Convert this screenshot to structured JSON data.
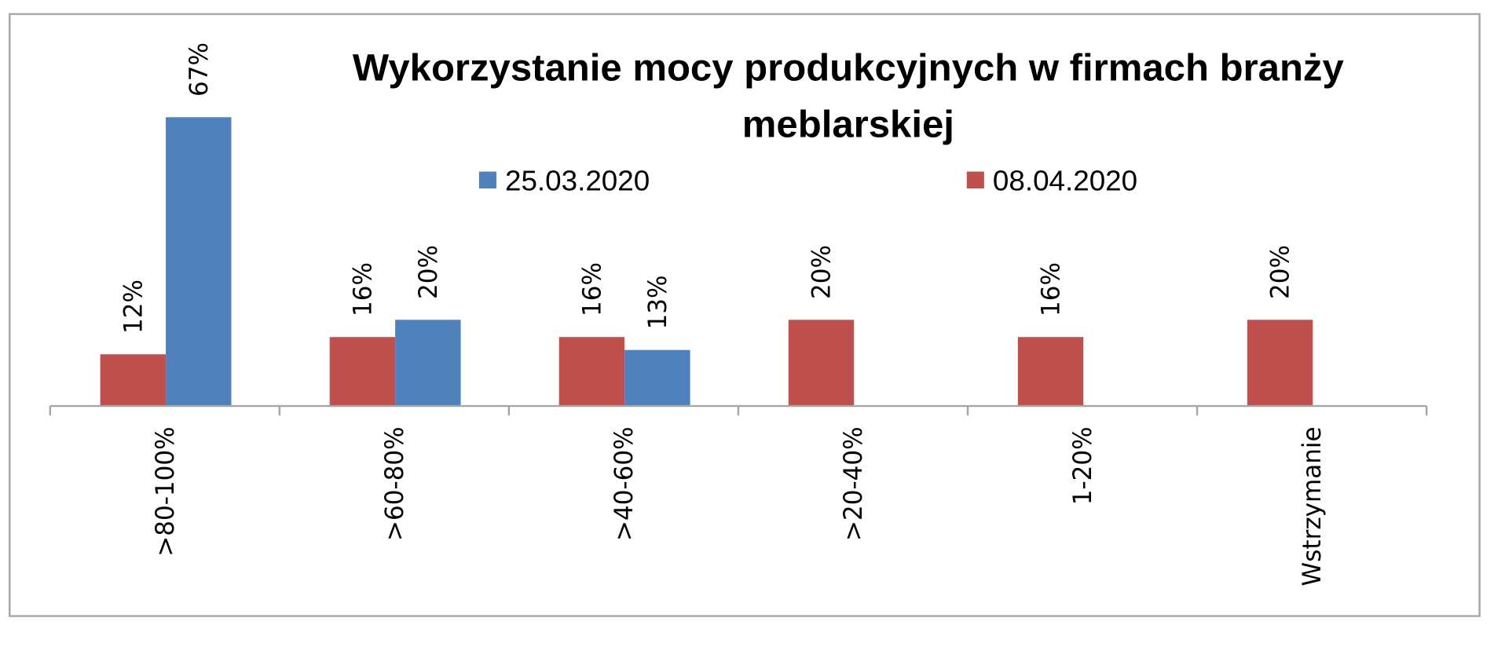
{
  "chart_data": {
    "type": "bar",
    "title_lines": [
      "Wykorzystanie mocy produkcyjnych w firmach branży",
      "meblarskiej"
    ],
    "categories": [
      ">80-100%",
      ">60-80%",
      ">40-60%",
      ">20-40%",
      "1-20%",
      "Wstrzymanie"
    ],
    "series": [
      {
        "name": "08.04.2020",
        "color": "#C0504D",
        "values": [
          12,
          16,
          16,
          20,
          16,
          20
        ],
        "labels": [
          "12%",
          "16%",
          "16%",
          "20%",
          "16%",
          "20%"
        ]
      },
      {
        "name": "25.03.2020",
        "color": "#4F81BD",
        "values": [
          67,
          20,
          13,
          null,
          null,
          null
        ],
        "labels": [
          "67%",
          "20%",
          "13%",
          null,
          null,
          null
        ]
      }
    ],
    "legend_order": [
      1,
      0
    ],
    "legend_position": "top",
    "ylim": [
      0,
      67
    ],
    "y_axis_visible": false,
    "grid": false,
    "xlabel": "",
    "ylabel": ""
  }
}
